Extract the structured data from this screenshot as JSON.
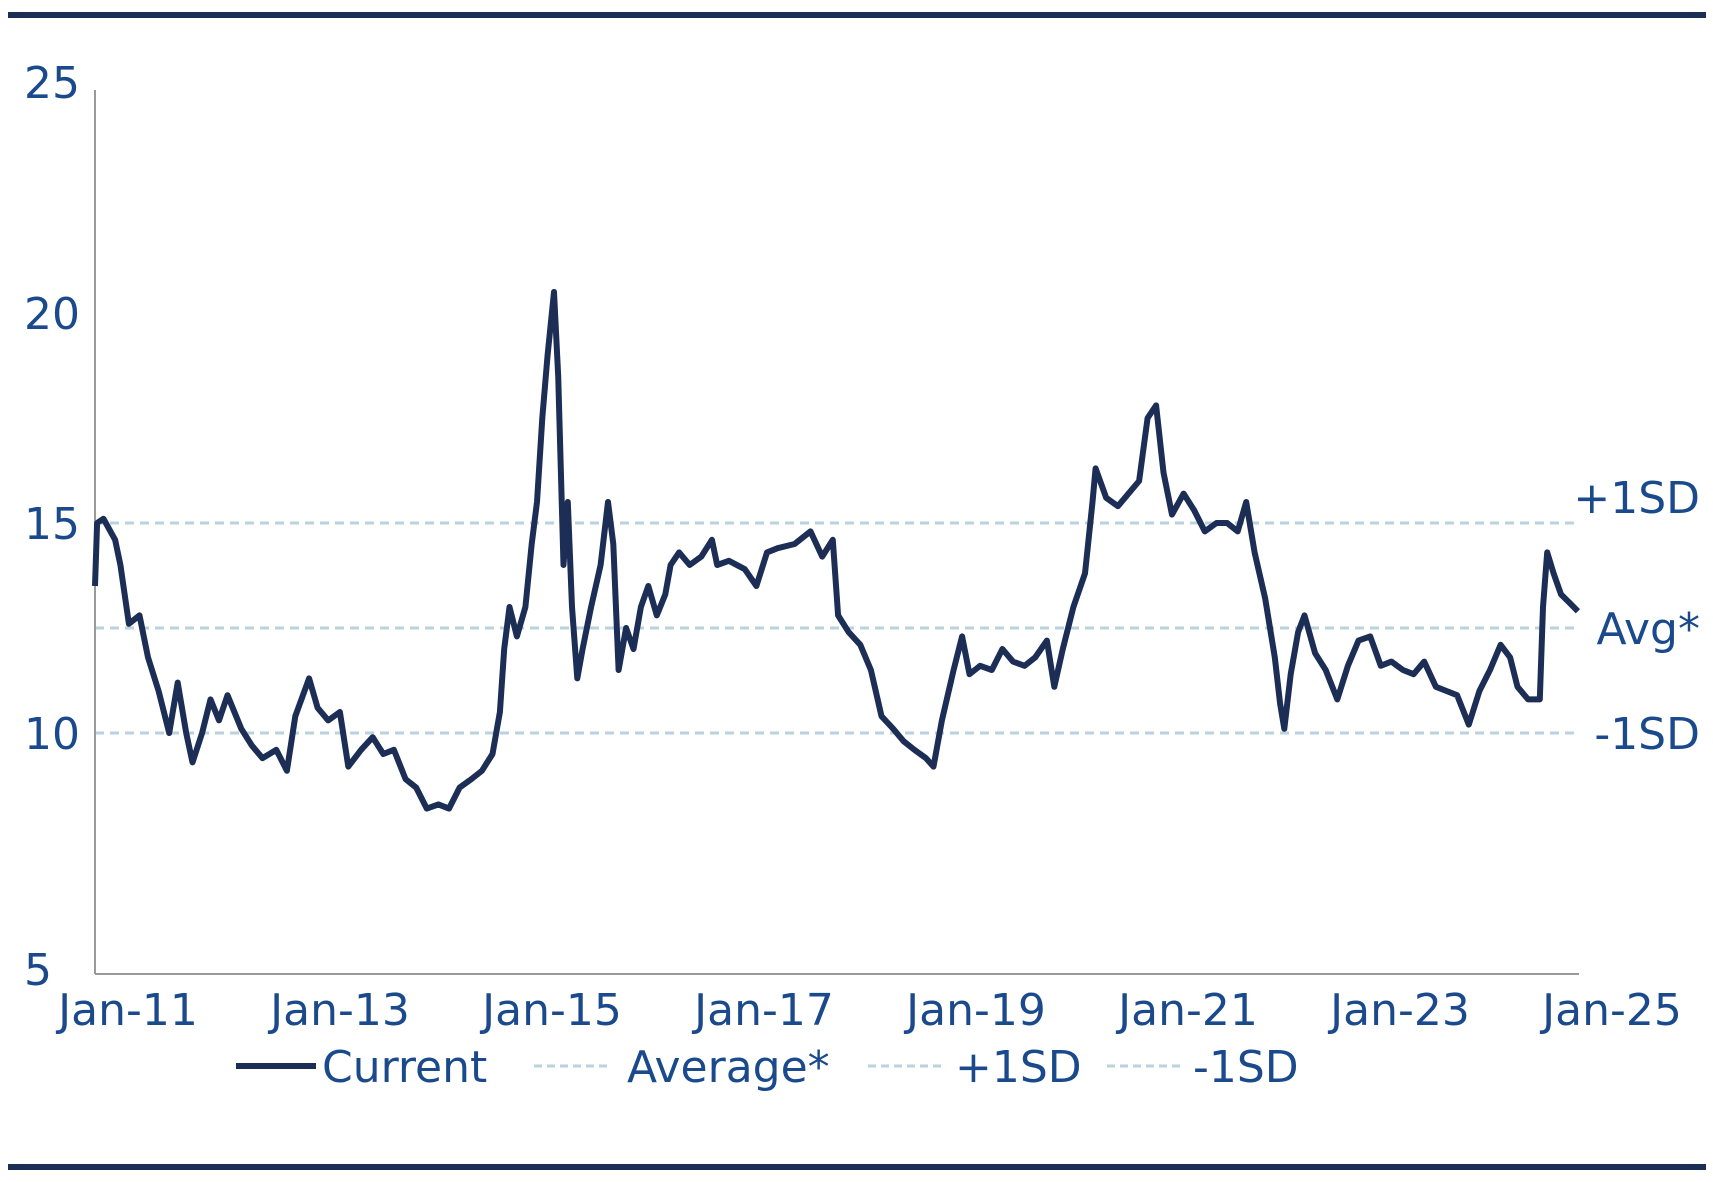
{
  "chart_data": {
    "type": "line",
    "title": "",
    "xlabel": "",
    "ylabel": "",
    "ylim": [
      5,
      25
    ],
    "yticks": [
      "5",
      "10",
      "15",
      "20",
      "25"
    ],
    "ytick_values": [
      5,
      10,
      15,
      20,
      25
    ],
    "xticks": [
      "Jan-11",
      "Jan-13",
      "Jan-15",
      "Jan-17",
      "Jan-19",
      "Jan-21",
      "Jan-23",
      "Jan-25"
    ],
    "xtick_values": [
      2011,
      2013,
      2015,
      2017,
      2019,
      2021,
      2023,
      2025
    ],
    "xlim": [
      2011,
      2025
    ],
    "grid": false,
    "legend_position": "bottom",
    "colors": {
      "current": "#1c2e55",
      "reference": "#b9d2de",
      "text": "#1b4a8c",
      "rule": "#1c2e55"
    },
    "reference_lines": [
      {
        "name": "+1SD",
        "label": "+1SD",
        "value": 15.0
      },
      {
        "name": "Average*",
        "label": "Avg*",
        "value": 12.5
      },
      {
        "name": "-1SD",
        "label": "-1SD",
        "value": 10.0
      }
    ],
    "legend": [
      "Current",
      "Average*",
      "+1SD",
      "-1SD"
    ],
    "series": [
      {
        "name": "Current",
        "x": [
          2011.0,
          2011.02,
          2011.08,
          2011.19,
          2011.24,
          2011.32,
          2011.42,
          2011.5,
          2011.6,
          2011.7,
          2011.78,
          2011.86,
          2011.92,
          2012.01,
          2012.09,
          2012.17,
          2012.25,
          2012.38,
          2012.48,
          2012.58,
          2012.71,
          2012.81,
          2012.89,
          2013.02,
          2013.1,
          2013.2,
          2013.31,
          2013.39,
          2013.51,
          2013.62,
          2013.72,
          2013.82,
          2013.93,
          2014.03,
          2014.13,
          2014.24,
          2014.34,
          2014.44,
          2014.55,
          2014.65,
          2014.75,
          2014.82,
          2014.86,
          2014.91,
          2014.98,
          2015.06,
          2015.12,
          2015.17,
          2015.22,
          2015.27,
          2015.33,
          2015.37,
          2015.42,
          2015.46,
          2015.5,
          2015.55,
          2015.6,
          2015.68,
          2015.77,
          2015.84,
          2015.89,
          2015.94,
          2016.01,
          2016.08,
          2016.15,
          2016.22,
          2016.3,
          2016.38,
          2016.43,
          2016.51,
          2016.61,
          2016.72,
          2016.82,
          2016.87,
          2016.98,
          2017.13,
          2017.24,
          2017.34,
          2017.44,
          2017.6,
          2017.75,
          2017.86,
          2017.96,
          2018.01,
          2018.11,
          2018.22,
          2018.32,
          2018.42,
          2018.53,
          2018.63,
          2018.73,
          2018.84,
          2018.91,
          2018.99,
          2019.1,
          2019.18,
          2019.25,
          2019.35,
          2019.46,
          2019.56,
          2019.66,
          2019.77,
          2019.87,
          2019.98,
          2020.05,
          2020.13,
          2020.23,
          2020.34,
          2020.41,
          2020.44,
          2020.54,
          2020.65,
          2020.75,
          2020.85,
          2020.93,
          2021.01,
          2021.08,
          2021.16,
          2021.27,
          2021.37,
          2021.47,
          2021.58,
          2021.68,
          2021.78,
          2021.86,
          2021.94,
          2022.04,
          2022.13,
          2022.18,
          2022.22,
          2022.28,
          2022.35,
          2022.41,
          2022.51,
          2022.61,
          2022.72,
          2022.82,
          2022.92,
          2023.03,
          2023.13,
          2023.23,
          2023.34,
          2023.44,
          2023.54,
          2023.65,
          2023.75,
          2023.85,
          2023.96,
          2024.06,
          2024.16,
          2024.26,
          2024.35,
          2024.42,
          2024.52,
          2024.63,
          2024.66,
          2024.7,
          2024.76,
          2024.83,
          2024.91,
          2024.99
        ],
        "y": [
          13.5,
          15.0,
          15.1,
          14.6,
          14.0,
          12.6,
          12.8,
          11.8,
          11.0,
          10.0,
          11.2,
          10.0,
          9.3,
          10.0,
          10.8,
          10.3,
          10.9,
          10.1,
          9.7,
          9.4,
          9.6,
          9.1,
          10.4,
          11.3,
          10.6,
          10.3,
          10.5,
          9.2,
          9.6,
          9.9,
          9.5,
          9.6,
          8.9,
          8.7,
          8.2,
          8.3,
          8.2,
          8.7,
          8.9,
          9.1,
          9.5,
          10.5,
          12.0,
          13.0,
          12.3,
          13.0,
          14.5,
          15.5,
          17.5,
          19.0,
          20.5,
          18.5,
          14.0,
          15.5,
          13.0,
          11.3,
          12.0,
          13.0,
          14.0,
          15.5,
          14.5,
          11.5,
          12.5,
          12.0,
          13.0,
          13.5,
          12.8,
          13.3,
          14.0,
          14.3,
          14.0,
          14.2,
          14.6,
          14.0,
          14.1,
          13.9,
          13.5,
          14.3,
          14.4,
          14.5,
          14.8,
          14.2,
          14.6,
          12.8,
          12.4,
          12.1,
          11.5,
          10.4,
          10.1,
          9.8,
          9.6,
          9.4,
          9.2,
          10.3,
          11.5,
          12.3,
          11.4,
          11.6,
          11.5,
          12.0,
          11.7,
          11.6,
          11.8,
          12.2,
          11.1,
          12.0,
          13.0,
          13.8,
          15.5,
          16.3,
          15.6,
          15.4,
          15.7,
          16.0,
          17.5,
          17.8,
          16.2,
          15.2,
          15.7,
          15.3,
          14.8,
          15.0,
          15.0,
          14.8,
          15.5,
          14.3,
          13.2,
          11.8,
          10.7,
          10.1,
          11.4,
          12.4,
          12.8,
          11.9,
          11.5,
          10.8,
          11.6,
          12.2,
          12.3,
          11.6,
          11.7,
          11.5,
          11.4,
          11.7,
          11.1,
          11.0,
          10.9,
          10.2,
          11.0,
          11.5,
          12.1,
          11.8,
          11.1,
          10.8,
          10.8,
          13.0,
          14.3,
          13.8,
          13.3,
          13.1,
          12.9
        ]
      }
    ]
  }
}
